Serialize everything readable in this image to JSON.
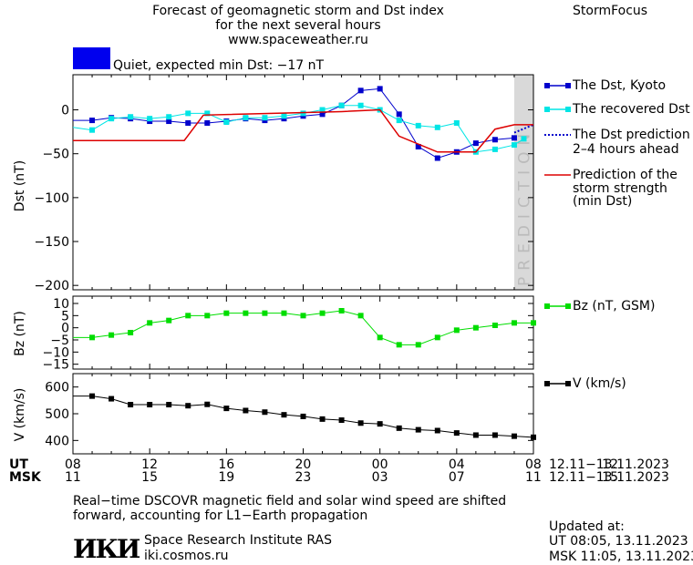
{
  "header": {
    "title_line1": "Forecast of geomagnetic storm and Dst index",
    "title_line2": "for the next several hours",
    "url": "www.spaceweather.ru",
    "brand": "StormFocus"
  },
  "status": {
    "text": "Quiet, expected min Dst: −17 nT",
    "color": "#0000ee"
  },
  "prediction_label": "PREDICTION",
  "legend": {
    "dst_kyoto": "The Dst, Kyoto",
    "dst_recovered": "The recovered Dst",
    "dst_pred_1": "The Dst prediction",
    "dst_pred_2": "2–4 hours ahead",
    "storm_1": "Prediction of the",
    "storm_2": "storm strength",
    "storm_3": "(min Dst)",
    "bz": "Bz (nT, GSM)",
    "v": "V (km/s)"
  },
  "time_axis": {
    "ut_label": "UT",
    "msk_label": "MSK",
    "ut_ticks": [
      "08",
      "12",
      "16",
      "20",
      "00",
      "04",
      "08",
      "12"
    ],
    "msk_ticks": [
      "11",
      "15",
      "19",
      "23",
      "03",
      "07",
      "11",
      "15"
    ],
    "date_range_ut": "12.11−13.11.2023",
    "date_range_msk": "12.11−13.11.2023"
  },
  "footer": {
    "note_line1": "Real−time DSCOVR magnetic field and solar wind speed are shifted",
    "note_line2": "forward, accounting for L1−Earth propagation",
    "logo_text": "ИКИ",
    "institute": "Space Research Institute RAS",
    "site": "iki.cosmos.ru",
    "updated_label": "Updated at:",
    "updated_ut": "UT   08:05, 13.11.2023",
    "updated_msk": "MSK 11:05, 13.11.2023"
  },
  "colors": {
    "dst_kyoto": "#0000cc",
    "dst_recovered": "#00e5e5",
    "dst_prediction": "#0000cc",
    "storm_strength": "#dd0000",
    "bz": "#00dd00",
    "v": "#000000",
    "prediction_band": "#d9d9d9"
  },
  "chart_data": [
    {
      "type": "line",
      "ylabel": "Dst (nT)",
      "ylim": [
        -205,
        40
      ],
      "yticks": [
        0,
        -50,
        -100,
        -150,
        -200
      ],
      "x_hours": [
        7,
        33
      ],
      "prediction_from_hour": 31,
      "series": [
        {
          "name": "The Dst, Kyoto",
          "x": [
            7,
            8,
            9,
            10,
            11,
            12,
            13,
            14,
            15,
            16,
            17,
            18,
            19,
            20,
            21,
            22,
            23,
            24,
            25,
            26,
            27,
            28,
            29,
            30,
            31
          ],
          "y": [
            -12,
            -12,
            -12,
            -9,
            -10,
            -13,
            -13,
            -15,
            -15,
            -13,
            -10,
            -12,
            -10,
            -7,
            -5,
            5,
            22,
            24,
            -5,
            -42,
            -55,
            -48,
            -38,
            -34,
            -32
          ]
        },
        {
          "name": "The recovered Dst",
          "x": [
            8,
            9,
            10,
            11,
            12,
            13,
            14,
            15,
            16,
            17,
            18,
            19,
            20,
            21,
            22,
            23,
            24,
            25,
            26,
            27,
            28,
            29,
            30,
            31,
            31.5
          ],
          "y": [
            -20,
            -23,
            -10,
            -8,
            -10,
            -8,
            -4,
            -4,
            -14,
            -9,
            -9,
            -7,
            -4,
            0,
            5,
            5,
            0,
            -12,
            -18,
            -20,
            -15,
            -48,
            -45,
            -40,
            -33
          ]
        },
        {
          "name": "The Dst prediction",
          "x": [
            31,
            32,
            33
          ],
          "y": [
            -26,
            -17,
            -17
          ]
        },
        {
          "name": "Prediction of the storm strength (min Dst)",
          "x": [
            7,
            13.8,
            14.8,
            22,
            24,
            25,
            27,
            28,
            29,
            30,
            31,
            33
          ],
          "y": [
            -35,
            -35,
            -6,
            -2,
            0,
            -30,
            -48,
            -48,
            -48,
            -22,
            -17,
            -17
          ]
        }
      ]
    },
    {
      "type": "line",
      "ylabel": "Bz (nT)",
      "ylim": [
        -17,
        13
      ],
      "yticks": [
        10,
        5,
        0,
        -5,
        -10,
        -15
      ],
      "series": [
        {
          "name": "Bz (nT, GSM)",
          "x": [
            8,
            9,
            10,
            11,
            12,
            13,
            14,
            15,
            16,
            17,
            18,
            19,
            20,
            21,
            22,
            23,
            24,
            25,
            26,
            27,
            28,
            29,
            30,
            31,
            32
          ],
          "y": [
            -4,
            -4,
            -3,
            -2,
            2,
            3,
            5,
            5,
            6,
            6,
            6,
            6,
            5,
            6,
            7,
            5,
            -4,
            -7,
            -7,
            -4,
            -1,
            0,
            1,
            2,
            2
          ]
        }
      ]
    },
    {
      "type": "line",
      "ylabel": "V (km/s)",
      "ylim": [
        350,
        650
      ],
      "yticks": [
        600,
        500,
        400
      ],
      "series": [
        {
          "name": "V (km/s)",
          "x": [
            8,
            9,
            10,
            11,
            12,
            13,
            14,
            15,
            16,
            17,
            18,
            19,
            20,
            21,
            22,
            23,
            24,
            25,
            26,
            27,
            28,
            29,
            30,
            31,
            32
          ],
          "y": [
            566,
            566,
            556,
            534,
            534,
            534,
            530,
            535,
            520,
            512,
            506,
            496,
            490,
            480,
            476,
            465,
            462,
            446,
            440,
            437,
            428,
            420,
            420,
            416,
            412
          ]
        }
      ]
    }
  ]
}
